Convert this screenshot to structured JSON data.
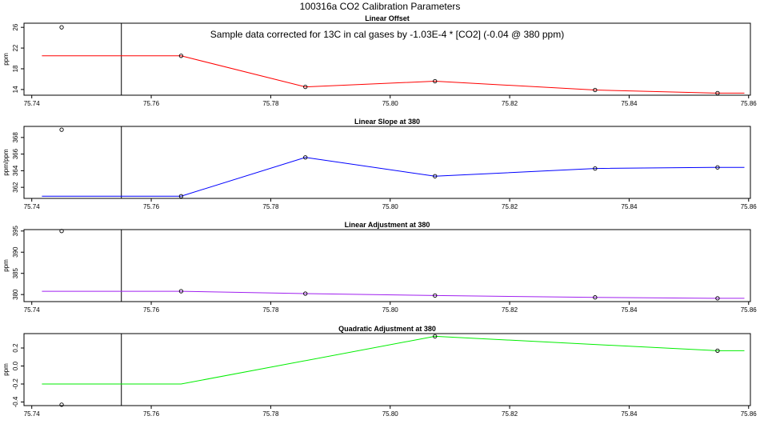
{
  "figure": {
    "title": "100316a   CO2 Calibration Parameters"
  },
  "chart_data": [
    {
      "type": "line",
      "title": "Linear Offset",
      "annotation": "Sample data corrected for 13C in cal gases by -1.03E-4 * [CO2] (-0.04 @ 380 ppm)",
      "xlabel": "",
      "ylabel": "ppm",
      "xlim": [
        75.7387,
        75.8603
      ],
      "ylim": [
        12.9,
        26.8
      ],
      "xticks": [
        {
          "v": 75.74,
          "label": "75.74"
        },
        {
          "v": 75.76,
          "label": "75.76"
        },
        {
          "v": 75.78,
          "label": "75.78"
        },
        {
          "v": 75.8,
          "label": "75.80"
        },
        {
          "v": 75.82,
          "label": "75.82"
        },
        {
          "v": 75.84,
          "label": "75.84"
        },
        {
          "v": 75.86,
          "label": "75.86"
        }
      ],
      "yticks": [
        {
          "v": 14,
          "label": "14"
        },
        {
          "v": 18,
          "label": "18"
        },
        {
          "v": 22,
          "label": "22"
        },
        {
          "v": 26,
          "label": "26"
        }
      ],
      "vline_x": 75.755,
      "line_color": "#ff0000",
      "line_x": [
        75.7417,
        75.765,
        75.7858,
        75.8075,
        75.8343,
        75.8548,
        75.8593
      ],
      "line_y": [
        20.5,
        20.5,
        14.5,
        15.6,
        13.9,
        13.3,
        13.3
      ],
      "points_x": [
        75.745,
        75.765,
        75.7858,
        75.8075,
        75.8343,
        75.8548
      ],
      "points_y": [
        26.0,
        20.5,
        14.5,
        15.6,
        13.9,
        13.3
      ]
    },
    {
      "type": "line",
      "title": "Linear Slope at 380",
      "annotation": "",
      "xlabel": "",
      "ylabel": "ppm/ppm",
      "xlim": [
        75.7387,
        75.8603
      ],
      "ylim": [
        1.0004,
        1.00105
      ],
      "xticks": [
        {
          "v": 75.74,
          "label": "75.74"
        },
        {
          "v": 75.76,
          "label": "75.76"
        },
        {
          "v": 75.78,
          "label": "75.78"
        },
        {
          "v": 75.8,
          "label": "75.80"
        },
        {
          "v": 75.82,
          "label": "75.82"
        },
        {
          "v": 75.84,
          "label": "75.84"
        },
        {
          "v": 75.86,
          "label": "75.86"
        }
      ],
      "yticks": [
        {
          "v": 1.0005,
          "label": "362"
        },
        {
          "v": 1.00065,
          "label": "364"
        },
        {
          "v": 1.0008,
          "label": "366"
        },
        {
          "v": 1.00095,
          "label": "368"
        }
      ],
      "vline_x": 75.755,
      "line_color": "#0000ff",
      "line_x": [
        75.7417,
        75.765,
        75.7858,
        75.8075,
        75.8343,
        75.8548,
        75.8593
      ],
      "line_y": [
        1.00042,
        1.00042,
        1.00077,
        1.0006,
        1.00067,
        1.00068,
        1.00068
      ],
      "points_x": [
        75.745,
        75.765,
        75.7858,
        75.8075,
        75.8343,
        75.8548
      ],
      "points_y": [
        1.00102,
        1.00042,
        1.00077,
        1.0006,
        1.00067,
        1.00068
      ]
    },
    {
      "type": "line",
      "title": "Linear Adjustment at 380",
      "annotation": "",
      "xlabel": "",
      "ylabel": "ppm",
      "xlim": [
        75.7387,
        75.8603
      ],
      "ylim": [
        380.3,
        395.6
      ],
      "xticks": [
        {
          "v": 75.74,
          "label": "75.74"
        },
        {
          "v": 75.76,
          "label": "75.76"
        },
        {
          "v": 75.78,
          "label": "75.78"
        },
        {
          "v": 75.8,
          "label": "75.80"
        },
        {
          "v": 75.82,
          "label": "75.82"
        },
        {
          "v": 75.84,
          "label": "75.84"
        },
        {
          "v": 75.86,
          "label": "75.86"
        }
      ],
      "yticks": [
        {
          "v": 381.8,
          "label": "380"
        },
        {
          "v": 386.3,
          "label": "385"
        },
        {
          "v": 390.8,
          "label": "390"
        },
        {
          "v": 395.3,
          "label": "395"
        }
      ],
      "vline_x": 75.755,
      "line_color": "#a020f0",
      "line_x": [
        75.7417,
        75.765,
        75.7858,
        75.8075,
        75.8343,
        75.8548,
        75.8593
      ],
      "line_y": [
        382.5,
        382.5,
        382.0,
        381.6,
        381.2,
        381.0,
        381.0
      ],
      "points_x": [
        75.745,
        75.765,
        75.7858,
        75.8075,
        75.8343,
        75.8548
      ],
      "points_y": [
        395.3,
        382.5,
        382.0,
        381.6,
        381.2,
        381.0
      ]
    },
    {
      "type": "line",
      "title": "Quadratic Adjustment at 380",
      "annotation": "",
      "xlabel": "",
      "ylabel": "ppm",
      "xlim": [
        75.7387,
        75.8603
      ],
      "ylim": [
        -0.44,
        0.36
      ],
      "xticks": [
        {
          "v": 75.74,
          "label": "75.74"
        },
        {
          "v": 75.76,
          "label": "75.76"
        },
        {
          "v": 75.78,
          "label": "75.78"
        },
        {
          "v": 75.8,
          "label": "75.80"
        },
        {
          "v": 75.82,
          "label": "75.82"
        },
        {
          "v": 75.84,
          "label": "75.84"
        },
        {
          "v": 75.86,
          "label": "75.86"
        }
      ],
      "yticks": [
        {
          "v": -0.4,
          "label": "-0.4"
        },
        {
          "v": -0.2,
          "label": "-0.2"
        },
        {
          "v": 0.0,
          "label": "0.0"
        },
        {
          "v": 0.2,
          "label": "0.2"
        }
      ],
      "vline_x": 75.755,
      "line_color": "#00ee00",
      "line_x": [
        75.7417,
        75.765,
        75.8075,
        75.8548,
        75.8593
      ],
      "line_y": [
        -0.2,
        -0.2,
        0.33,
        0.17,
        0.17
      ],
      "points_x": [
        75.745,
        75.8075,
        75.8548
      ],
      "points_y": [
        -0.43,
        0.33,
        0.17
      ]
    }
  ]
}
